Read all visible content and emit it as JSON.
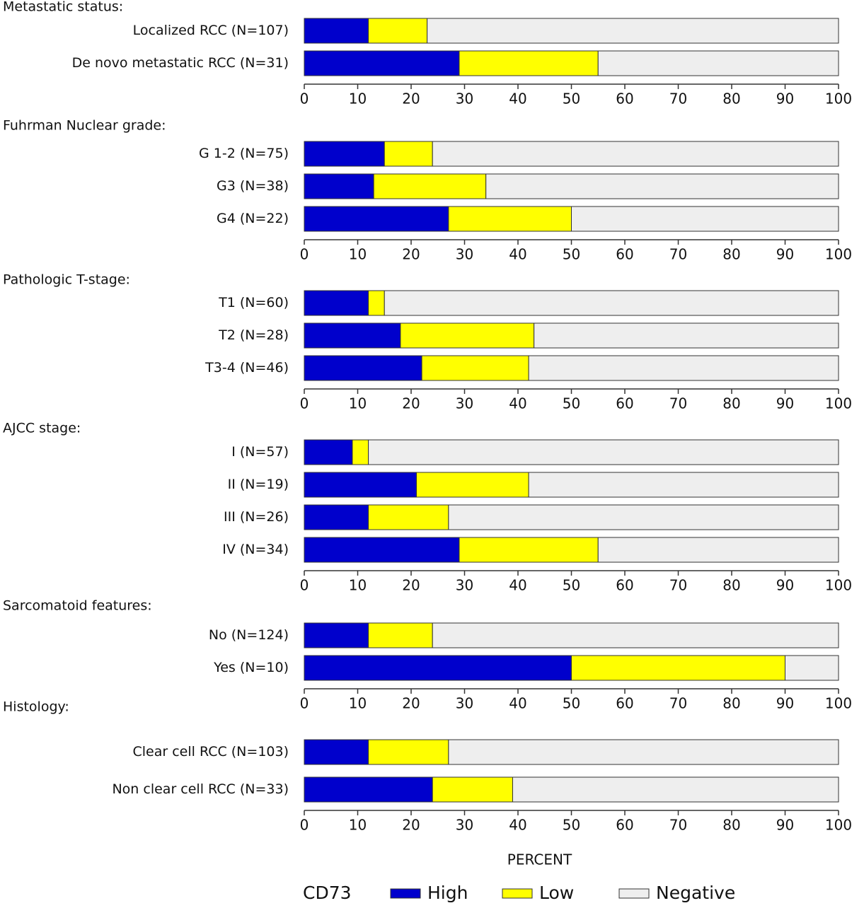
{
  "chart_data": [
    {
      "type": "stacked-bar-horizontal",
      "title": "Metastatic status:",
      "categories": [
        "Localized RCC (N=107)",
        "De novo metastatic RCC (N=31)"
      ],
      "series": [
        {
          "name": "High",
          "color": "#0000cc",
          "values": [
            12,
            29
          ]
        },
        {
          "name": "Low",
          "color": "#ffff00",
          "values": [
            11,
            26
          ]
        },
        {
          "name": "Negative",
          "color": "#eeeeee",
          "values": [
            77,
            45
          ]
        }
      ],
      "xlim": [
        0,
        100
      ],
      "xticks": [
        0,
        10,
        20,
        30,
        40,
        50,
        60,
        70,
        80,
        90,
        100
      ]
    },
    {
      "type": "stacked-bar-horizontal",
      "title": "Fuhrman Nuclear grade:",
      "categories": [
        "G 1-2 (N=75)",
        "G3 (N=38)",
        "G4 (N=22)"
      ],
      "series": [
        {
          "name": "High",
          "color": "#0000cc",
          "values": [
            15,
            13,
            27
          ]
        },
        {
          "name": "Low",
          "color": "#ffff00",
          "values": [
            9,
            21,
            23
          ]
        },
        {
          "name": "Negative",
          "color": "#eeeeee",
          "values": [
            76,
            66,
            50
          ]
        }
      ],
      "xlim": [
        0,
        100
      ],
      "xticks": [
        0,
        10,
        20,
        30,
        40,
        50,
        60,
        70,
        80,
        90,
        100
      ]
    },
    {
      "type": "stacked-bar-horizontal",
      "title": "Pathologic T-stage:",
      "categories": [
        "T1  (N=60)",
        "T2 (N=28)",
        "T3-4 (N=46)"
      ],
      "series": [
        {
          "name": "High",
          "color": "#0000cc",
          "values": [
            12,
            18,
            22
          ]
        },
        {
          "name": "Low",
          "color": "#ffff00",
          "values": [
            3,
            25,
            20
          ]
        },
        {
          "name": "Negative",
          "color": "#eeeeee",
          "values": [
            85,
            57,
            58
          ]
        }
      ],
      "xlim": [
        0,
        100
      ],
      "xticks": [
        0,
        10,
        20,
        30,
        40,
        50,
        60,
        70,
        80,
        90,
        100
      ]
    },
    {
      "type": "stacked-bar-horizontal",
      "title": "AJCC stage:",
      "categories": [
        "I  (N=57)",
        "II (N=19)",
        "III (N=26)",
        "IV (N=34)"
      ],
      "series": [
        {
          "name": "High",
          "color": "#0000cc",
          "values": [
            9,
            21,
            12,
            29
          ]
        },
        {
          "name": "Low",
          "color": "#ffff00",
          "values": [
            3,
            21,
            15,
            26
          ]
        },
        {
          "name": "Negative",
          "color": "#eeeeee",
          "values": [
            88,
            58,
            73,
            45
          ]
        }
      ],
      "xlim": [
        0,
        100
      ],
      "xticks": [
        0,
        10,
        20,
        30,
        40,
        50,
        60,
        70,
        80,
        90,
        100
      ]
    },
    {
      "type": "stacked-bar-horizontal",
      "title": "Sarcomatoid features:",
      "categories": [
        "No (N=124)",
        "Yes (N=10)"
      ],
      "series": [
        {
          "name": "High",
          "color": "#0000cc",
          "values": [
            12,
            50
          ]
        },
        {
          "name": "Low",
          "color": "#ffff00",
          "values": [
            12,
            40
          ]
        },
        {
          "name": "Negative",
          "color": "#eeeeee",
          "values": [
            76,
            10
          ]
        }
      ],
      "xlim": [
        0,
        100
      ],
      "xticks": [
        0,
        10,
        20,
        30,
        40,
        50,
        60,
        70,
        80,
        90,
        100
      ]
    },
    {
      "type": "stacked-bar-horizontal",
      "title": "Histology:",
      "categories": [
        "Clear cell RCC (N=103)",
        "Non clear cell RCC (N=33)"
      ],
      "series": [
        {
          "name": "High",
          "color": "#0000cc",
          "values": [
            12,
            24
          ]
        },
        {
          "name": "Low",
          "color": "#ffff00",
          "values": [
            15,
            15
          ]
        },
        {
          "name": "Negative",
          "color": "#eeeeee",
          "values": [
            73,
            61
          ]
        }
      ],
      "xlim": [
        0,
        100
      ],
      "xticks": [
        0,
        10,
        20,
        30,
        40,
        50,
        60,
        70,
        80,
        90,
        100
      ],
      "xlabel": "PERCENT",
      "legend_title": "CD73"
    }
  ]
}
